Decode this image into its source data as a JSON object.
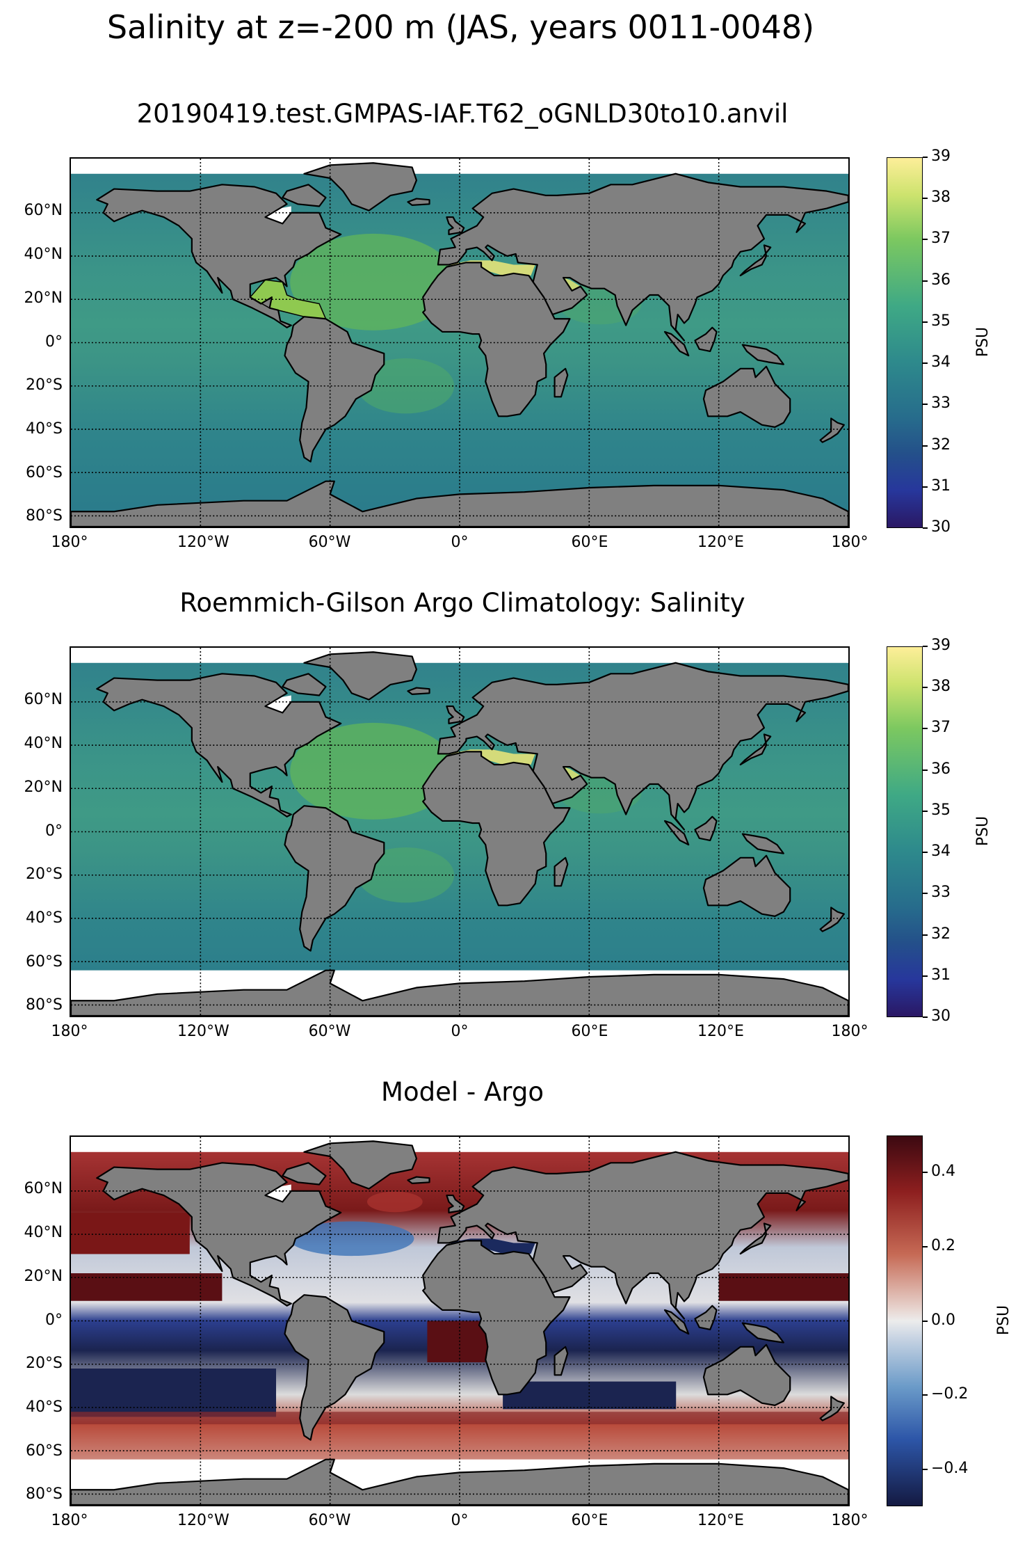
{
  "figure_title": "Salinity at z=-200 m (JAS, years 0011-0048)",
  "panels": [
    {
      "title": "20190419.test.GMPAS-IAF.T62_oGNLD30to10.anvil"
    },
    {
      "title": "Roemmich-Gilson Argo Climatology: Salinity"
    },
    {
      "title": "Model - Argo"
    }
  ],
  "lat_ticks": [
    "60°N",
    "40°N",
    "20°N",
    "0°",
    "20°S",
    "40°S",
    "60°S",
    "80°S"
  ],
  "lon_ticks": [
    "180°",
    "120°W",
    "60°W",
    "0°",
    "60°E",
    "120°E",
    "180°"
  ],
  "colorbars": [
    {
      "label": "PSU",
      "ticks": [
        "39",
        "38",
        "37",
        "36",
        "35",
        "34",
        "33",
        "32",
        "31",
        "30"
      ],
      "colormap": "haline"
    },
    {
      "label": "PSU",
      "ticks": [
        "39",
        "38",
        "37",
        "36",
        "35",
        "34",
        "33",
        "32",
        "31",
        "30"
      ],
      "colormap": "haline"
    },
    {
      "label": "PSU",
      "ticks": [
        "0.4",
        "0.2",
        "0.0",
        "−0.2",
        "−0.4"
      ],
      "colormap": "balance"
    }
  ],
  "chart_data": [
    {
      "type": "heatmap",
      "title": "20190419.test.GMPAS-IAF.T62_oGNLD30to10.anvil",
      "xlabel": "",
      "ylabel": "",
      "xlim": [
        -180,
        180
      ],
      "ylim": [
        -85,
        85
      ],
      "colorbar_label": "PSU",
      "clim": [
        30,
        39
      ],
      "grid": true,
      "projection": "PlateCarree",
      "land_color": "#808080"
    },
    {
      "type": "heatmap",
      "title": "Roemmich-Gilson Argo Climatology: Salinity",
      "xlabel": "",
      "ylabel": "",
      "xlim": [
        -180,
        180
      ],
      "ylim": [
        -85,
        85
      ],
      "colorbar_label": "PSU",
      "clim": [
        30,
        39
      ],
      "grid": true,
      "projection": "PlateCarree",
      "land_color": "#808080"
    },
    {
      "type": "heatmap",
      "title": "Model - Argo",
      "xlabel": "",
      "ylabel": "",
      "xlim": [
        -180,
        180
      ],
      "ylim": [
        -85,
        85
      ],
      "colorbar_label": "PSU",
      "clim": [
        -0.5,
        0.5
      ],
      "grid": true,
      "projection": "PlateCarree",
      "land_color": "#808080"
    }
  ]
}
